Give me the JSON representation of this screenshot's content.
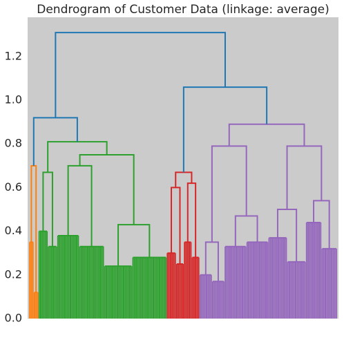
{
  "chart_data": {
    "type": "dendrogram",
    "title": "Dendrogram of Customer Data (linkage: average)",
    "ylim": [
      0,
      1.38
    ],
    "yticks": [
      {
        "value": 0,
        "label": "0.0"
      },
      0.2,
      0.4,
      0.6,
      0.8,
      {
        "value": 1,
        "label": "1.0"
      },
      1.2
    ],
    "grid": false,
    "tree": {
      "height": 1.31,
      "color": "#1f77b4",
      "children": [
        {
          "height": 0.92,
          "color": "#1f77b4",
          "children": [
            {
              "height": 0.7,
              "color": "#ff7f0e",
              "children": [
                {
                  "height": 0.35,
                  "leaves": 3
                },
                {
                  "height": 0.12,
                  "leaves": 3
                }
              ]
            },
            {
              "height": 0.81,
              "color": "#2ca02c",
              "children": [
                {
                  "height": 0.67,
                  "children": [
                    {
                      "height": 0.4,
                      "leaves": 6
                    },
                    {
                      "height": 0.33,
                      "leaves": 6
                    }
                  ]
                },
                {
                  "height": 0.75,
                  "children": [
                    {
                      "height": 0.7,
                      "children": [
                        {
                          "height": 0.38,
                          "leaves": 14
                        },
                        {
                          "height": 0.33,
                          "leaves": 16
                        }
                      ]
                    },
                    {
                      "height": 0.43,
                      "children": [
                        {
                          "height": 0.24,
                          "leaves": 18
                        },
                        {
                          "height": 0.28,
                          "leaves": 22
                        }
                      ]
                    }
                  ]
                }
              ]
            }
          ]
        },
        {
          "height": 1.06,
          "color": "#1f77b4",
          "children": [
            {
              "height": 0.67,
              "color": "#d62728",
              "children": [
                {
                  "height": 0.6,
                  "children": [
                    {
                      "height": 0.3,
                      "leaves": 6
                    },
                    {
                      "height": 0.25,
                      "leaves": 5
                    }
                  ]
                },
                {
                  "height": 0.62,
                  "children": [
                    {
                      "height": 0.35,
                      "leaves": 5
                    },
                    {
                      "height": 0.28,
                      "leaves": 5
                    }
                  ]
                }
              ]
            },
            {
              "height": 0.89,
              "color": "#9467bd",
              "children": [
                {
                  "height": 0.79,
                  "children": [
                    {
                      "height": 0.35,
                      "children": [
                        {
                          "height": 0.2,
                          "leaves": 8
                        },
                        {
                          "height": 0.17,
                          "leaves": 8
                        }
                      ]
                    },
                    {
                      "height": 0.47,
                      "children": [
                        {
                          "height": 0.33,
                          "leaves": 14
                        },
                        {
                          "height": 0.35,
                          "leaves": 14
                        }
                      ]
                    }
                  ]
                },
                {
                  "height": 0.79,
                  "children": [
                    {
                      "height": 0.5,
                      "children": [
                        {
                          "height": 0.37,
                          "leaves": 12
                        },
                        {
                          "height": 0.26,
                          "leaves": 12
                        }
                      ]
                    },
                    {
                      "height": 0.54,
                      "children": [
                        {
                          "height": 0.44,
                          "leaves": 10
                        },
                        {
                          "height": 0.32,
                          "leaves": 10
                        }
                      ]
                    }
                  ]
                }
              ]
            }
          ]
        }
      ]
    }
  }
}
